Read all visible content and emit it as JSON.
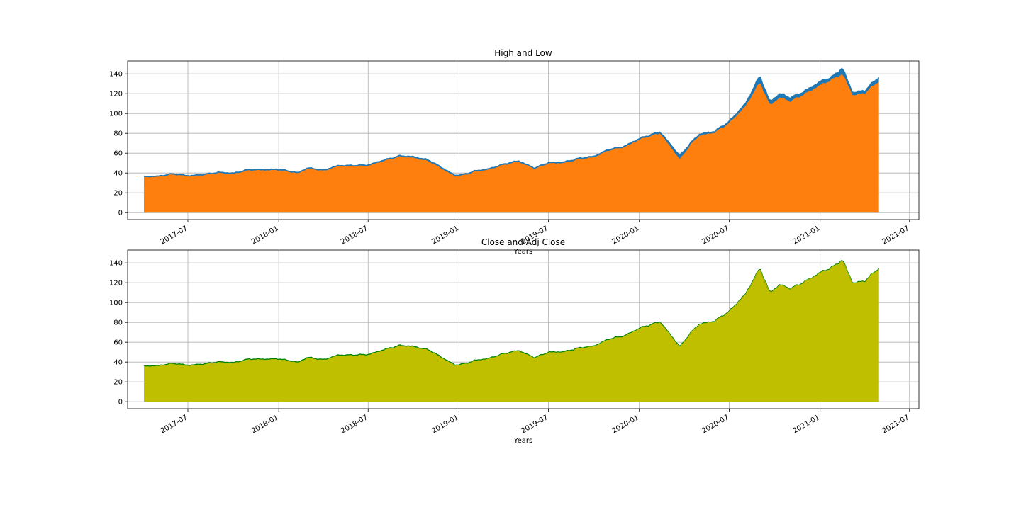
{
  "figure": {
    "background": "#ffffff"
  },
  "chart_data": [
    {
      "type": "area",
      "title": "High and Low",
      "xlabel": "Years",
      "ylabel": "",
      "x_type": "date",
      "xlim": [
        "2017-03-01",
        "2021-07-20"
      ],
      "ylim": [
        -7,
        153
      ],
      "xticks": [
        "2017-07",
        "2018-01",
        "2018-07",
        "2019-01",
        "2019-07",
        "2020-01",
        "2020-07",
        "2021-01",
        "2021-07"
      ],
      "yticks": [
        0,
        20,
        40,
        60,
        80,
        100,
        120,
        140
      ],
      "grid": true,
      "legend": "none",
      "x": [
        "2017-04-03",
        "2017-05-01",
        "2017-06-01",
        "2017-07-03",
        "2017-08-01",
        "2017-09-01",
        "2017-10-02",
        "2017-11-01",
        "2017-12-01",
        "2018-01-02",
        "2018-02-09",
        "2018-03-01",
        "2018-04-02",
        "2018-05-01",
        "2018-06-01",
        "2018-07-02",
        "2018-08-01",
        "2018-09-04",
        "2018-10-01",
        "2018-11-01",
        "2018-12-24",
        "2019-01-15",
        "2019-02-01",
        "2019-03-01",
        "2019-04-01",
        "2019-05-01",
        "2019-06-03",
        "2019-07-01",
        "2019-08-01",
        "2019-09-03",
        "2019-10-01",
        "2019-11-01",
        "2019-12-02",
        "2020-01-02",
        "2020-02-12",
        "2020-03-23",
        "2020-04-15",
        "2020-05-01",
        "2020-06-01",
        "2020-07-01",
        "2020-08-03",
        "2020-09-01",
        "2020-09-21",
        "2020-10-12",
        "2020-11-02",
        "2020-12-01",
        "2021-01-04",
        "2021-01-26",
        "2021-02-15",
        "2021-03-08",
        "2021-04-01",
        "2021-04-30"
      ],
      "series": [
        {
          "name": "",
          "color": "#1f77b4",
          "values": [
            36.5,
            36.8,
            39.2,
            37.2,
            38.5,
            40.7,
            39.8,
            43.6,
            43.4,
            43.8,
            40.3,
            45.2,
            42.9,
            47.5,
            47.6,
            48.2,
            53.0,
            57.4,
            56.4,
            53.0,
            37.6,
            39.0,
            42.0,
            44.0,
            49.0,
            52.3,
            45.0,
            50.5,
            51.0,
            55.0,
            56.8,
            64.0,
            67.0,
            75.0,
            81.5,
            57.4,
            71.0,
            79.0,
            82.0,
            92.0,
            110.0,
            138.0,
            112.0,
            120.0,
            116.0,
            122.5,
            133.0,
            137.0,
            146.0,
            121.0,
            123.0,
            137.0
          ]
        },
        {
          "name": "",
          "color": "#ff7f0e",
          "values": [
            35.5,
            35.8,
            38.2,
            36.2,
            37.5,
            39.7,
            38.8,
            42.4,
            42.4,
            42.6,
            39.3,
            44.2,
            41.8,
            46.5,
            46.6,
            47.1,
            51.8,
            56.2,
            55.0,
            51.5,
            36.2,
            37.9,
            41.0,
            43.0,
            47.8,
            51.0,
            43.9,
            49.4,
            49.7,
            53.8,
            55.5,
            62.6,
            65.8,
            73.6,
            79.8,
            53.2,
            69.0,
            77.3,
            80.4,
            90.0,
            107.0,
            131.0,
            108.0,
            116.0,
            112.0,
            119.5,
            129.0,
            134.0,
            139.5,
            118.0,
            120.0,
            132.5
          ]
        }
      ]
    },
    {
      "type": "area",
      "title": "Close and Adj Close",
      "xlabel": "Years",
      "ylabel": "",
      "x_type": "date",
      "xlim": [
        "2017-03-01",
        "2021-07-20"
      ],
      "ylim": [
        -7,
        153
      ],
      "xticks": [
        "2017-07",
        "2018-01",
        "2018-07",
        "2019-01",
        "2019-07",
        "2020-01",
        "2020-07",
        "2021-01",
        "2021-07"
      ],
      "yticks": [
        0,
        20,
        40,
        60,
        80,
        100,
        120,
        140
      ],
      "grid": true,
      "legend": "none",
      "x": [
        "2017-04-03",
        "2017-05-01",
        "2017-06-01",
        "2017-07-03",
        "2017-08-01",
        "2017-09-01",
        "2017-10-02",
        "2017-11-01",
        "2017-12-01",
        "2018-01-02",
        "2018-02-09",
        "2018-03-01",
        "2018-04-02",
        "2018-05-01",
        "2018-06-01",
        "2018-07-02",
        "2018-08-01",
        "2018-09-04",
        "2018-10-01",
        "2018-11-01",
        "2018-12-24",
        "2019-01-15",
        "2019-02-01",
        "2019-03-01",
        "2019-04-01",
        "2019-05-01",
        "2019-06-03",
        "2019-07-01",
        "2019-08-01",
        "2019-09-03",
        "2019-10-01",
        "2019-11-01",
        "2019-12-02",
        "2020-01-02",
        "2020-02-12",
        "2020-03-23",
        "2020-04-15",
        "2020-05-01",
        "2020-06-01",
        "2020-07-01",
        "2020-08-03",
        "2020-09-01",
        "2020-09-21",
        "2020-10-12",
        "2020-11-02",
        "2020-12-01",
        "2021-01-04",
        "2021-01-26",
        "2021-02-15",
        "2021-03-08",
        "2021-04-01",
        "2021-04-30"
      ],
      "series": [
        {
          "name": "",
          "color": "#008000",
          "values": [
            36.0,
            36.3,
            38.7,
            36.7,
            38.0,
            40.2,
            39.3,
            43.0,
            42.9,
            43.2,
            39.8,
            44.7,
            42.3,
            47.0,
            47.1,
            47.6,
            52.4,
            56.8,
            55.7,
            52.2,
            36.9,
            38.5,
            41.5,
            43.5,
            48.4,
            51.6,
            44.4,
            49.9,
            50.3,
            54.4,
            56.1,
            63.3,
            66.4,
            74.3,
            80.6,
            55.3,
            70.0,
            78.1,
            81.2,
            91.0,
            108.5,
            134.5,
            110.0,
            118.0,
            114.0,
            121.0,
            131.0,
            135.5,
            143.0,
            119.5,
            121.5,
            134.8
          ]
        },
        {
          "name": "",
          "color": "#bfbf00",
          "values": [
            35.3,
            35.6,
            38.0,
            36.0,
            37.3,
            39.5,
            38.6,
            42.3,
            42.2,
            42.5,
            39.1,
            44.0,
            41.6,
            46.3,
            46.4,
            46.9,
            51.7,
            56.1,
            55.0,
            51.5,
            36.2,
            37.9,
            40.9,
            42.9,
            47.8,
            51.0,
            43.8,
            49.3,
            49.7,
            53.8,
            55.5,
            62.7,
            65.8,
            73.7,
            80.0,
            54.7,
            69.5,
            77.6,
            80.7,
            90.5,
            108.0,
            134.0,
            109.5,
            117.5,
            113.6,
            120.6,
            130.6,
            135.0,
            142.5,
            119.0,
            121.0,
            134.3
          ]
        }
      ]
    }
  ]
}
